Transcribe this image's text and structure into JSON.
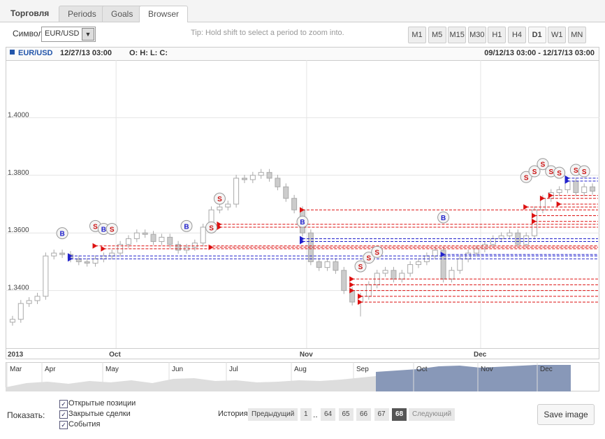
{
  "tabs": {
    "app": "Торговля",
    "items": [
      "Periods",
      "Goals",
      "Browser"
    ],
    "active": 2
  },
  "toolbar": {
    "symbol_label": "Символ",
    "symbol": "EUR/USD",
    "tip": "Tip: Hold shift to select a period to zoom into.",
    "timeframes": [
      "M1",
      "M5",
      "M15",
      "M30",
      "H1",
      "H4",
      "D1",
      "W1",
      "MN"
    ],
    "active": 6
  },
  "chart_header": {
    "symbol": "EUR/USD",
    "time": "12/27/13 03:00",
    "ohlc": "O: H: L: C:",
    "range": "09/12/13 03:00 - 12/17/13 03:00"
  },
  "chart_data": {
    "type": "candlestick",
    "ylim": [
      1.32,
      1.42
    ],
    "yticks": [
      {
        "value": 1.34,
        "label": "1.3400"
      },
      {
        "value": 1.36,
        "label": "1.3600"
      },
      {
        "value": 1.38,
        "label": "1.3800"
      },
      {
        "value": 1.4,
        "label": "1.4000"
      }
    ],
    "xlim": [
      0,
      71
    ],
    "xticks": [
      {
        "value": 0,
        "label": "2013"
      },
      {
        "value": 13,
        "label": "Oct"
      },
      {
        "value": 36,
        "label": "Nov"
      },
      {
        "value": 57,
        "label": "Dec"
      }
    ],
    "grid": true,
    "up_color": "#ffffff",
    "down_color": "#cccccc",
    "edge_color": "#aaaaaa",
    "open": [
      1.329,
      1.33,
      1.3355,
      1.3365,
      1.338,
      1.352,
      1.353,
      1.3525,
      1.351,
      1.35,
      1.3495,
      1.351,
      1.352,
      1.353,
      1.356,
      1.358,
      1.36,
      1.3595,
      1.357,
      1.3585,
      1.356,
      1.354,
      1.355,
      1.3565,
      1.362,
      1.368,
      1.369,
      1.37,
      1.379,
      1.3785,
      1.38,
      1.381,
      1.379,
      1.376,
      1.372,
      1.368,
      1.36,
      1.35,
      1.348,
      1.35,
      1.347,
      1.34,
      1.336,
      1.338,
      1.342,
      1.346,
      1.347,
      1.344,
      1.346,
      1.349,
      1.35,
      1.352,
      1.354,
      1.344,
      1.347,
      1.351,
      1.353,
      1.3545,
      1.356,
      1.358,
      1.359,
      1.36,
      1.356,
      1.359,
      1.368,
      1.372,
      1.374,
      1.375,
      1.378,
      1.374,
      1.376
    ],
    "high": [
      1.3312,
      1.3367,
      1.3377,
      1.3392,
      1.3532,
      1.3542,
      1.3542,
      1.3537,
      1.3522,
      1.3512,
      1.3522,
      1.3532,
      1.3542,
      1.3572,
      1.3592,
      1.3612,
      1.3612,
      1.3607,
      1.3597,
      1.3597,
      1.3572,
      1.3562,
      1.3577,
      1.3632,
      1.3692,
      1.3702,
      1.3712,
      1.3802,
      1.3802,
      1.3812,
      1.3822,
      1.3822,
      1.3802,
      1.3772,
      1.3732,
      1.3692,
      1.3612,
      1.3512,
      1.3512,
      1.3512,
      1.3482,
      1.3412,
      1.3392,
      1.3432,
      1.3472,
      1.3482,
      1.3482,
      1.3472,
      1.3502,
      1.3512,
      1.3532,
      1.3552,
      1.3552,
      1.3482,
      1.3522,
      1.3542,
      1.3557,
      1.3572,
      1.3592,
      1.3602,
      1.3612,
      1.3612,
      1.3602,
      1.3692,
      1.3732,
      1.3752,
      1.3762,
      1.3792,
      1.3792,
      1.3772,
      1.3772
    ],
    "low": [
      1.3278,
      1.3288,
      1.3343,
      1.3353,
      1.3368,
      1.3508,
      1.3513,
      1.3498,
      1.3488,
      1.3483,
      1.3483,
      1.3498,
      1.3508,
      1.3518,
      1.3548,
      1.3568,
      1.3583,
      1.3558,
      1.3558,
      1.3548,
      1.3528,
      1.3528,
      1.3538,
      1.3553,
      1.3608,
      1.3668,
      1.3678,
      1.3688,
      1.3773,
      1.3773,
      1.3788,
      1.3778,
      1.3748,
      1.3708,
      1.3668,
      1.3588,
      1.3488,
      1.3468,
      1.3468,
      1.3458,
      1.3388,
      1.3348,
      1.331,
      1.3368,
      1.3408,
      1.3448,
      1.3428,
      1.3428,
      1.3448,
      1.3478,
      1.3488,
      1.3508,
      1.3428,
      1.3428,
      1.3458,
      1.3498,
      1.3518,
      1.3533,
      1.3548,
      1.3568,
      1.3578,
      1.3548,
      1.3548,
      1.3578,
      1.3668,
      1.3708,
      1.3728,
      1.3738,
      1.3728,
      1.3728,
      1.3733
    ],
    "close": [
      1.33,
      1.3355,
      1.3365,
      1.338,
      1.352,
      1.353,
      1.3525,
      1.351,
      1.35,
      1.3495,
      1.351,
      1.352,
      1.353,
      1.356,
      1.358,
      1.36,
      1.3595,
      1.357,
      1.3585,
      1.356,
      1.354,
      1.355,
      1.3565,
      1.362,
      1.368,
      1.369,
      1.37,
      1.379,
      1.3785,
      1.38,
      1.381,
      1.379,
      1.376,
      1.372,
      1.368,
      1.36,
      1.35,
      1.348,
      1.35,
      1.347,
      1.34,
      1.336,
      1.338,
      1.342,
      1.346,
      1.347,
      1.344,
      1.346,
      1.349,
      1.35,
      1.352,
      1.354,
      1.344,
      1.347,
      1.351,
      1.353,
      1.3545,
      1.356,
      1.358,
      1.359,
      1.36,
      1.356,
      1.359,
      1.368,
      1.372,
      1.374,
      1.375,
      1.378,
      1.374,
      1.376,
      1.3745
    ],
    "levels": [
      {
        "start": 7,
        "price": 1.352,
        "color": "#2222cc"
      },
      {
        "start": 7,
        "price": 1.351,
        "color": "#2222cc"
      },
      {
        "start": 35,
        "price": 1.358,
        "color": "#2222cc"
      },
      {
        "start": 35,
        "price": 1.357,
        "color": "#2222cc"
      },
      {
        "start": 52,
        "price": 1.3525,
        "color": "#2222cc"
      },
      {
        "start": 67,
        "price": 1.379,
        "color": "#2222cc"
      },
      {
        "start": 67,
        "price": 1.378,
        "color": "#2222cc"
      },
      {
        "start": 10,
        "price": 1.3555,
        "color": "#dd1111"
      },
      {
        "start": 11,
        "price": 1.3545,
        "color": "#dd1111"
      },
      {
        "start": 24,
        "price": 1.355,
        "color": "#dd1111"
      },
      {
        "start": 25,
        "price": 1.363,
        "color": "#dd1111"
      },
      {
        "start": 25,
        "price": 1.362,
        "color": "#dd1111"
      },
      {
        "start": 35,
        "price": 1.368,
        "color": "#dd1111"
      },
      {
        "start": 41,
        "price": 1.344,
        "color": "#dd1111"
      },
      {
        "start": 41,
        "price": 1.342,
        "color": "#dd1111"
      },
      {
        "start": 41,
        "price": 1.34,
        "color": "#dd1111"
      },
      {
        "start": 42,
        "price": 1.338,
        "color": "#dd1111"
      },
      {
        "start": 42,
        "price": 1.336,
        "color": "#dd1111"
      },
      {
        "start": 62,
        "price": 1.369,
        "color": "#dd1111"
      },
      {
        "start": 63,
        "price": 1.366,
        "color": "#dd1111"
      },
      {
        "start": 63,
        "price": 1.364,
        "color": "#dd1111"
      },
      {
        "start": 64,
        "price": 1.372,
        "color": "#dd1111"
      },
      {
        "start": 65,
        "price": 1.373,
        "color": "#dd1111"
      },
      {
        "start": 66,
        "price": 1.37,
        "color": "#dd1111"
      }
    ],
    "markers": [
      {
        "label": "B",
        "x": 6,
        "price": 1.3565
      },
      {
        "label": "S",
        "x": 10,
        "price": 1.359
      },
      {
        "label": "B",
        "x": 11,
        "price": 1.358
      },
      {
        "label": "S",
        "x": 12,
        "price": 1.358
      },
      {
        "label": "B",
        "x": 21,
        "price": 1.359
      },
      {
        "label": "S",
        "x": 24,
        "price": 1.3585
      },
      {
        "label": "S",
        "x": 25,
        "price": 1.3685
      },
      {
        "label": "B",
        "x": 35,
        "price": 1.3605
      },
      {
        "label": "S",
        "x": 42,
        "price": 1.345
      },
      {
        "label": "S",
        "x": 43,
        "price": 1.348
      },
      {
        "label": "S",
        "x": 44,
        "price": 1.35
      },
      {
        "label": "B",
        "x": 52,
        "price": 1.362
      },
      {
        "label": "S",
        "x": 62,
        "price": 1.376
      },
      {
        "label": "S",
        "x": 63,
        "price": 1.378
      },
      {
        "label": "S",
        "x": 64,
        "price": 1.3805
      },
      {
        "label": "S",
        "x": 65,
        "price": 1.378
      },
      {
        "label": "S",
        "x": 66,
        "price": 1.3775
      },
      {
        "label": "S",
        "x": 68,
        "price": 1.3785
      },
      {
        "label": "S",
        "x": 69,
        "price": 1.378
      }
    ]
  },
  "navigator": {
    "months": [
      "Mar",
      "Apr",
      "May",
      "Jun",
      "Jul",
      "Aug",
      "Sep",
      "Oct",
      "Nov",
      "Dec"
    ]
  },
  "footer": {
    "show_label": "Показать:",
    "checkboxes": [
      "Открытые позиции",
      "Закрытые сделки",
      "События"
    ],
    "history_label": "История",
    "prev": "Предыдущий",
    "first": "1",
    "ellipsis": "..",
    "pages": [
      "64",
      "65",
      "66",
      "67",
      "68"
    ],
    "current": 4,
    "next": "Следующий",
    "save": "Save image"
  }
}
